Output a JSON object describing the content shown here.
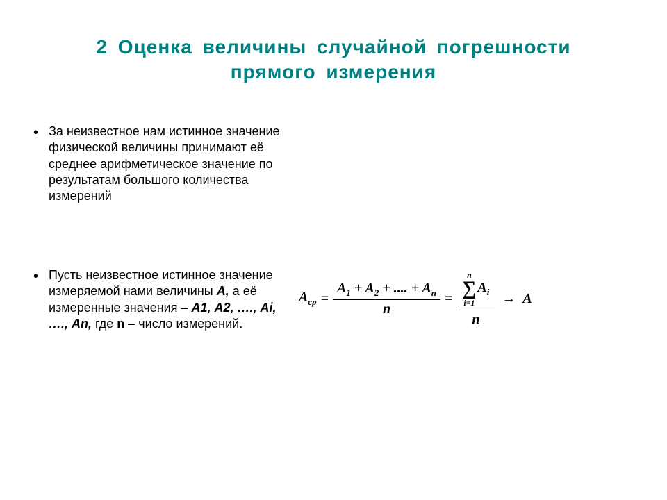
{
  "title_line1": "2  Оценка  величины  случайной  погрешности",
  "title_line2": "прямого  измерения",
  "bullet1": "За неизвестное нам истинное значение физической величины принимают её среднее арифметическое значение по результатам большого количества измерений",
  "bullet2_part1": "Пусть неизвестное истинное значение измеряемой нами величины ",
  "bullet2_A": "А,",
  "bullet2_part2": " а её измеренные значения – ",
  "bullet2_seq": "А1, А2, …., Аi, …., Аn,",
  "bullet2_part3": " где ",
  "bullet2_n": "n",
  "bullet2_part4": " – число измерений.",
  "formula": {
    "lhs": "A",
    "lhs_sub": "ср",
    "eq": "=",
    "num_terms": "A₁ + A₂ + .... + Aₙ",
    "num_parts": {
      "a1": "A",
      "s1": "1",
      "plus": " + ",
      "a2": "A",
      "s2": "2",
      "dots": " + .... + ",
      "an": "A",
      "sn": "n"
    },
    "den": "n",
    "sum_top": "n",
    "sum_bot": "i=1",
    "sigma": "∑",
    "sum_term": "A",
    "sum_term_sub": "i",
    "sum_den": "n",
    "arrow": "→",
    "rhs": "A"
  }
}
